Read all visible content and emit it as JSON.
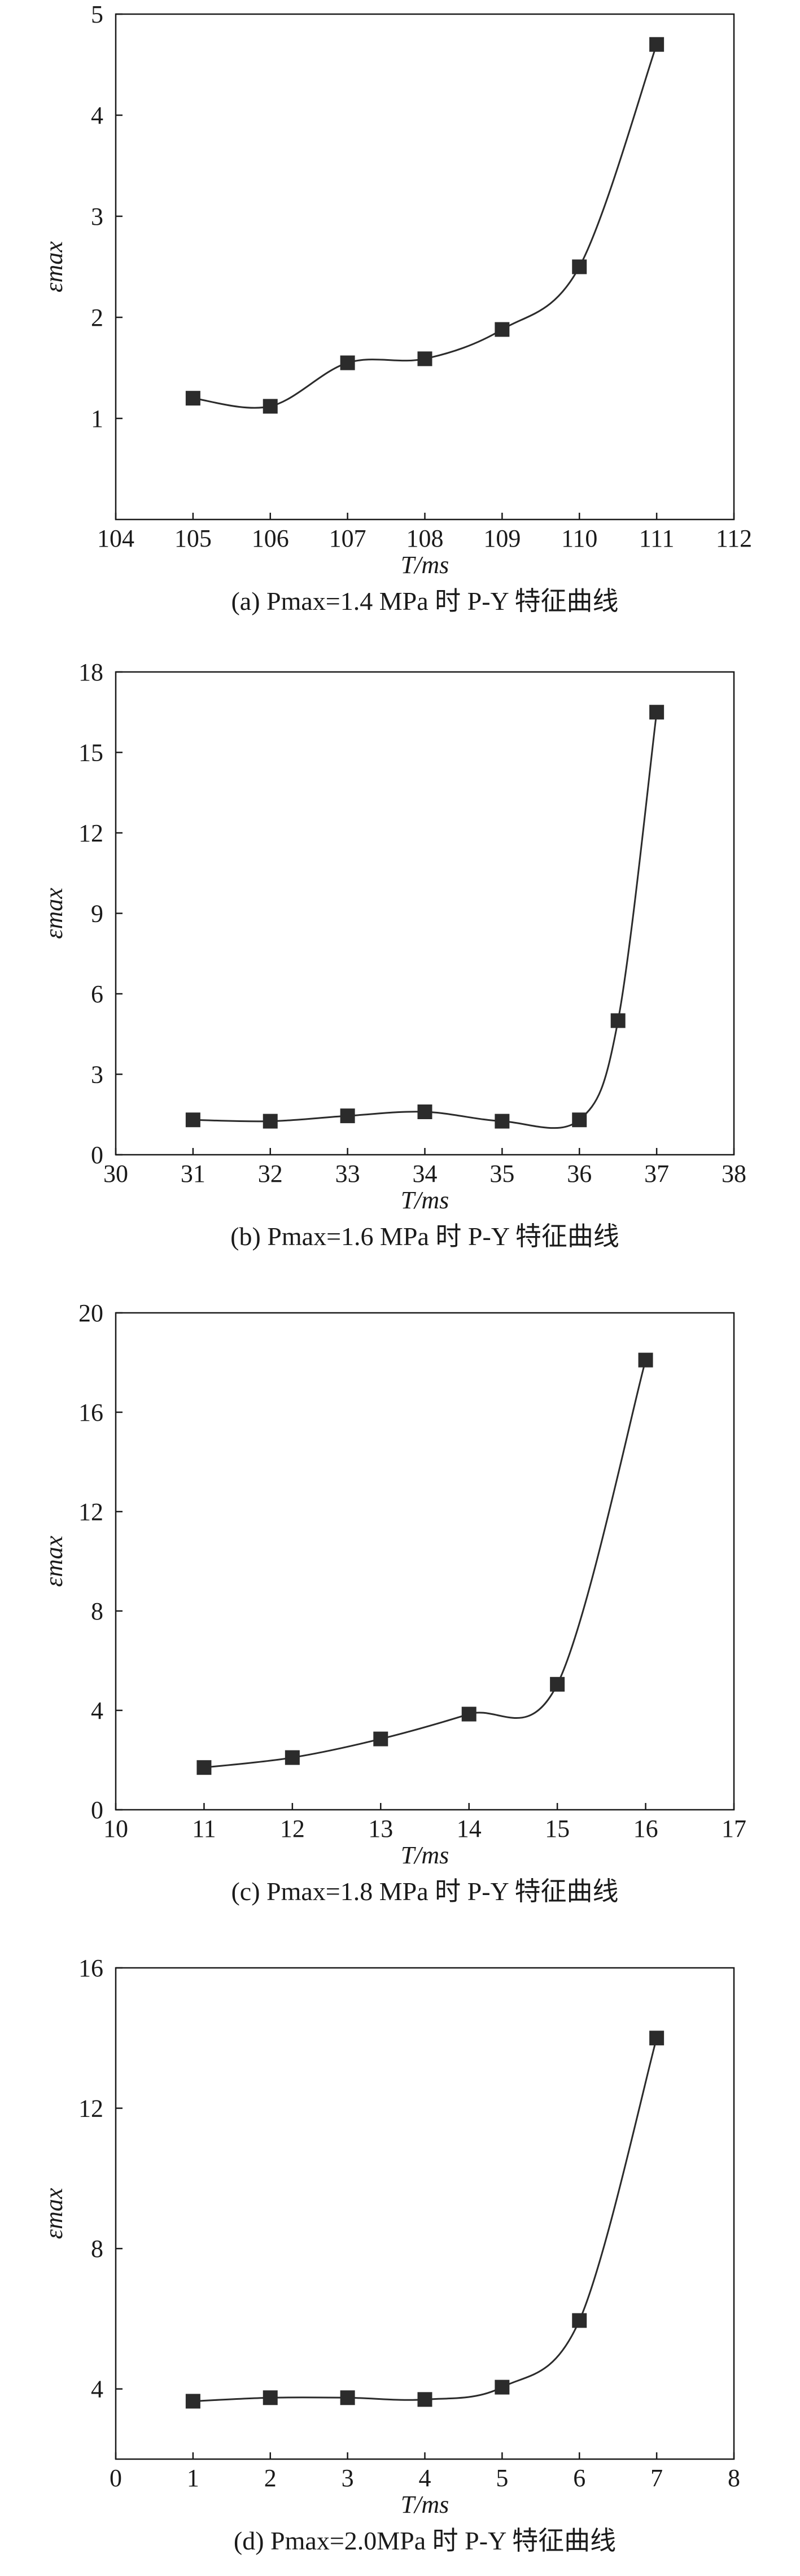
{
  "chart_data": [
    {
      "type": "line",
      "x": [
        105,
        106,
        107,
        108,
        109,
        110,
        111
      ],
      "series": [
        {
          "values": [
            1.2,
            1.12,
            1.55,
            1.59,
            1.88,
            2.5,
            4.7
          ]
        }
      ],
      "xlim": [
        104,
        112
      ],
      "ylim": [
        0,
        5
      ],
      "xticks": [
        "104",
        "105",
        "106",
        "107",
        "108",
        "109",
        "110",
        "111",
        "112"
      ],
      "yticks": [
        "1",
        "2",
        "3",
        "4",
        "5"
      ],
      "xlabel": "T/ms",
      "ylabel": "εmax",
      "caption": "(a) Pmax=1.4 MPa 时 P-Y 特征曲线",
      "grid": false,
      "marker": "square",
      "color": "#2b2b2b"
    },
    {
      "type": "line",
      "x": [
        31,
        32,
        33,
        34,
        35,
        36,
        36.5,
        37
      ],
      "series": [
        {
          "values": [
            1.3,
            1.25,
            1.45,
            1.6,
            1.25,
            1.3,
            5.0,
            16.5
          ]
        }
      ],
      "xlim": [
        30,
        38
      ],
      "ylim": [
        0,
        18
      ],
      "xticks": [
        "30",
        "31",
        "32",
        "33",
        "34",
        "35",
        "36",
        "37",
        "38"
      ],
      "yticks": [
        "0",
        "3",
        "6",
        "9",
        "12",
        "15",
        "18"
      ],
      "xlabel": "T/ms",
      "ylabel": "εmax",
      "caption": "(b) Pmax=1.6 MPa 时 P-Y 特征曲线",
      "grid": false,
      "marker": "square",
      "color": "#2b2b2b"
    },
    {
      "type": "line",
      "x": [
        11,
        12,
        13,
        14,
        15,
        16
      ],
      "series": [
        {
          "values": [
            1.7,
            2.1,
            2.85,
            3.85,
            5.05,
            18.1
          ]
        }
      ],
      "xlim": [
        10,
        17
      ],
      "ylim": [
        0,
        20
      ],
      "xticks": [
        "10",
        "11",
        "12",
        "13",
        "14",
        "15",
        "16",
        "17"
      ],
      "yticks": [
        "0",
        "4",
        "8",
        "12",
        "16",
        "20"
      ],
      "xlabel": "T/ms",
      "ylabel": "εmax",
      "caption": "(c) Pmax=1.8 MPa 时 P-Y 特征曲线",
      "grid": false,
      "marker": "square",
      "color": "#2b2b2b"
    },
    {
      "type": "line",
      "x": [
        1,
        2,
        3,
        4,
        5,
        6,
        7
      ],
      "series": [
        {
          "values": [
            3.65,
            3.75,
            3.75,
            3.7,
            4.05,
            5.95,
            14.0
          ]
        }
      ],
      "xlim": [
        0,
        8
      ],
      "ylim": [
        2,
        16
      ],
      "xticks": [
        "0",
        "1",
        "2",
        "3",
        "4",
        "5",
        "6",
        "7",
        "8"
      ],
      "yticks": [
        "4",
        "8",
        "12",
        "16"
      ],
      "xlabel": "T/ms",
      "ylabel": "εmax",
      "caption": "(d) Pmax=2.0MPa 时 P-Y 特征曲线",
      "grid": false,
      "marker": "square",
      "color": "#2b2b2b"
    }
  ]
}
